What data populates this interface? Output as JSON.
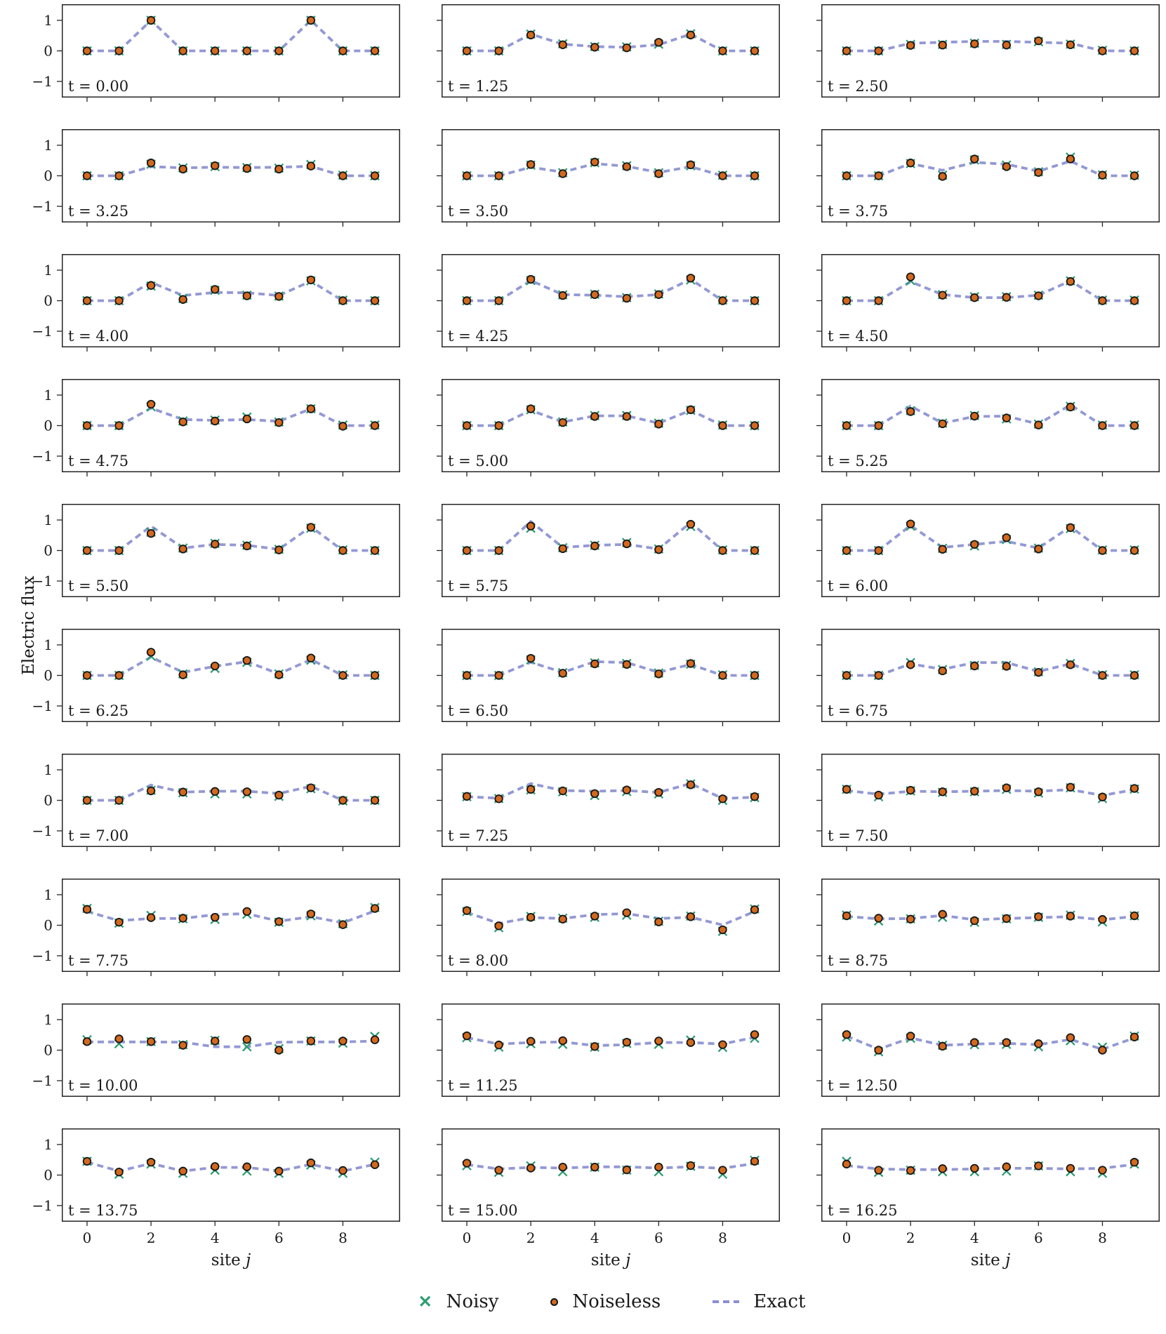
{
  "figure": {
    "ylabel": "Electric flux",
    "xlabel_prefix": "site ",
    "xlabel_var": "j",
    "t_label_prefix": "t = "
  },
  "legend": {
    "noisy": "Noisy",
    "noiseless": "Noiseless",
    "exact": "Exact"
  },
  "colors": {
    "noisy": "#2e9d72",
    "noiseless_fill": "#d2691e",
    "noiseless_edge": "#151515",
    "exact": "#8a8fd0",
    "frame": "#262626",
    "text": "#1a1a1a"
  },
  "chart_data": {
    "type": "line",
    "grid": false,
    "x": [
      0,
      1,
      2,
      3,
      4,
      5,
      6,
      7,
      8,
      9
    ],
    "xlim": [
      -0.8,
      9.8
    ],
    "ylim": [
      -1.5,
      1.5
    ],
    "x_ticks": [
      0,
      2,
      4,
      6,
      8
    ],
    "y_ticks": [
      1,
      0,
      -1
    ],
    "y_tick_labels": [
      "1",
      "0",
      "−1"
    ],
    "xlabel": "site j",
    "ylabel": "Electric flux",
    "legend": [
      "Noisy",
      "Noiseless",
      "Exact"
    ],
    "legend_position": "bottom center",
    "panels": [
      {
        "t": "0.00",
        "exact": [
          0,
          0,
          1,
          0,
          0,
          0,
          0,
          1,
          0,
          0
        ],
        "noiseless": [
          0,
          0,
          1,
          0,
          0,
          0,
          0,
          1,
          0,
          0
        ],
        "noisy": [
          0,
          0,
          1,
          0,
          0,
          0,
          0,
          1,
          0,
          0
        ]
      },
      {
        "t": "1.25",
        "exact": [
          0,
          0,
          0.55,
          0.22,
          0.14,
          0.12,
          0.2,
          0.55,
          0,
          0
        ],
        "noiseless": [
          0,
          0,
          0.52,
          0.2,
          0.12,
          0.1,
          0.28,
          0.52,
          0,
          0
        ],
        "noisy": [
          0,
          0,
          0.55,
          0.23,
          0.14,
          0.13,
          0.22,
          0.56,
          0,
          0
        ]
      },
      {
        "t": "2.50",
        "exact": [
          0,
          0,
          0.25,
          0.28,
          0.31,
          0.31,
          0.28,
          0.25,
          0,
          0
        ],
        "noiseless": [
          0,
          0,
          0.18,
          0.19,
          0.23,
          0.19,
          0.33,
          0.2,
          0,
          0
        ],
        "noisy": [
          0,
          0,
          0.21,
          0.21,
          0.25,
          0.21,
          0.3,
          0.22,
          0.02,
          0
        ]
      },
      {
        "t": "3.25",
        "exact": [
          0,
          0,
          0.3,
          0.26,
          0.28,
          0.27,
          0.28,
          0.31,
          0,
          0
        ],
        "noiseless": [
          0,
          0,
          0.42,
          0.22,
          0.33,
          0.24,
          0.22,
          0.32,
          0,
          0
        ],
        "noisy": [
          0,
          0,
          0.38,
          0.26,
          0.3,
          0.27,
          0.25,
          0.37,
          0.02,
          0
        ]
      },
      {
        "t": "3.50",
        "exact": [
          0,
          0,
          0.28,
          0.12,
          0.4,
          0.31,
          0.11,
          0.3,
          0,
          0
        ],
        "noiseless": [
          0,
          0,
          0.37,
          0.07,
          0.45,
          0.3,
          0.07,
          0.36,
          0,
          0
        ],
        "noisy": [
          0,
          0,
          0.35,
          0.1,
          0.43,
          0.33,
          0.1,
          0.33,
          0.02,
          0
        ]
      },
      {
        "t": "3.75",
        "exact": [
          0,
          0,
          0.4,
          0.18,
          0.44,
          0.38,
          0.15,
          0.48,
          0,
          0
        ],
        "noiseless": [
          0,
          0,
          0.42,
          -0.02,
          0.55,
          0.3,
          0.11,
          0.55,
          0.02,
          0
        ],
        "noisy": [
          0,
          0,
          0.4,
          0.02,
          0.52,
          0.35,
          0.13,
          0.61,
          0.03,
          0.02
        ]
      },
      {
        "t": "4.00",
        "exact": [
          0,
          0,
          0.6,
          0.17,
          0.27,
          0.26,
          0.17,
          0.64,
          0,
          0
        ],
        "noiseless": [
          0,
          0,
          0.5,
          0.04,
          0.37,
          0.16,
          0.14,
          0.68,
          0,
          0
        ],
        "noisy": [
          0,
          0,
          0.48,
          0.07,
          0.34,
          0.18,
          0.15,
          0.65,
          0.02,
          0
        ]
      },
      {
        "t": "4.25",
        "exact": [
          0,
          0,
          0.66,
          0.2,
          0.18,
          0.13,
          0.2,
          0.7,
          0,
          0
        ],
        "noiseless": [
          0,
          0,
          0.7,
          0.17,
          0.2,
          0.08,
          0.2,
          0.74,
          0,
          0
        ],
        "noisy": [
          0,
          0,
          0.66,
          0.19,
          0.21,
          0.1,
          0.22,
          0.68,
          0.02,
          0
        ]
      },
      {
        "t": "4.50",
        "exact": [
          0,
          0,
          0.62,
          0.2,
          0.1,
          0.1,
          0.18,
          0.65,
          0,
          0
        ],
        "noiseless": [
          0,
          0,
          0.78,
          0.18,
          0.1,
          0.11,
          0.16,
          0.63,
          0,
          0
        ],
        "noisy": [
          0,
          0,
          0.66,
          0.2,
          0.13,
          0.13,
          0.18,
          0.65,
          0.02,
          0.02
        ]
      },
      {
        "t": "4.75",
        "exact": [
          0,
          0,
          0.57,
          0.2,
          0.17,
          0.2,
          0.14,
          0.55,
          0,
          0
        ],
        "noiseless": [
          0,
          0,
          0.7,
          0.12,
          0.15,
          0.22,
          0.1,
          0.55,
          -0.02,
          0
        ],
        "noisy": [
          0,
          0,
          0.62,
          0.15,
          0.18,
          0.28,
          0.12,
          0.55,
          0.02,
          0.02
        ]
      },
      {
        "t": "5.00",
        "exact": [
          0,
          0,
          0.5,
          0.12,
          0.32,
          0.32,
          0.08,
          0.5,
          0,
          0
        ],
        "noiseless": [
          0,
          0,
          0.55,
          0.1,
          0.3,
          0.3,
          0.05,
          0.52,
          0,
          0
        ],
        "noisy": [
          0,
          0,
          0.52,
          0.12,
          0.33,
          0.33,
          0.08,
          0.5,
          0.02,
          0
        ]
      },
      {
        "t": "5.25",
        "exact": [
          0,
          0,
          0.64,
          0.08,
          0.3,
          0.31,
          0.05,
          0.68,
          0,
          0
        ],
        "noiseless": [
          0,
          0,
          0.46,
          0.06,
          0.31,
          0.25,
          0.02,
          0.61,
          0,
          0
        ],
        "noisy": [
          0,
          0,
          0.49,
          0.08,
          0.33,
          0.22,
          0.05,
          0.63,
          0.02,
          0.02
        ]
      },
      {
        "t": "5.50",
        "exact": [
          0,
          0,
          0.8,
          0.08,
          0.2,
          0.17,
          0.04,
          0.78,
          0,
          0
        ],
        "noiseless": [
          0,
          0,
          0.56,
          0.05,
          0.21,
          0.15,
          0.02,
          0.76,
          0,
          0
        ],
        "noisy": [
          0,
          0,
          0.6,
          0.08,
          0.23,
          0.17,
          0.04,
          0.73,
          0.02,
          0
        ]
      },
      {
        "t": "5.75",
        "exact": [
          0,
          0,
          0.95,
          0.1,
          0.17,
          0.2,
          0.05,
          0.92,
          0,
          0
        ],
        "noiseless": [
          0,
          0,
          0.8,
          0.06,
          0.15,
          0.22,
          0.03,
          0.86,
          0,
          0
        ],
        "noisy": [
          0,
          0,
          0.73,
          0.09,
          0.17,
          0.26,
          0.05,
          0.79,
          0.02,
          0
        ]
      },
      {
        "t": "6.00",
        "exact": [
          0,
          0,
          0.82,
          0.1,
          0.2,
          0.3,
          0.08,
          0.78,
          0,
          0
        ],
        "noiseless": [
          0,
          0,
          0.87,
          0.04,
          0.2,
          0.42,
          0.05,
          0.75,
          0,
          0
        ],
        "noisy": [
          0,
          0,
          0.8,
          0.07,
          0.15,
          0.36,
          0.08,
          0.72,
          0.02,
          0.02
        ]
      },
      {
        "t": "6.25",
        "exact": [
          0,
          0,
          0.6,
          0.1,
          0.3,
          0.45,
          0.05,
          0.52,
          0,
          0
        ],
        "noiseless": [
          0,
          0,
          0.76,
          0.02,
          0.31,
          0.49,
          0.02,
          0.57,
          0,
          0
        ],
        "noisy": [
          0,
          0,
          0.63,
          0.05,
          0.23,
          0.43,
          0.05,
          0.5,
          0.02,
          0
        ]
      },
      {
        "t": "6.50",
        "exact": [
          0,
          0,
          0.43,
          0.1,
          0.45,
          0.42,
          0.1,
          0.36,
          0,
          0
        ],
        "noiseless": [
          0,
          0,
          0.56,
          0.07,
          0.38,
          0.36,
          0.05,
          0.39,
          0,
          0
        ],
        "noisy": [
          0,
          0,
          0.51,
          0.09,
          0.41,
          0.39,
          0.08,
          0.37,
          0.02,
          0
        ]
      },
      {
        "t": "6.75",
        "exact": [
          0,
          0,
          0.38,
          0.2,
          0.42,
          0.42,
          0.13,
          0.38,
          0,
          0
        ],
        "noiseless": [
          0,
          0,
          0.35,
          0.15,
          0.31,
          0.3,
          0.1,
          0.35,
          0,
          0
        ],
        "noisy": [
          0,
          0,
          0.42,
          0.19,
          0.33,
          0.33,
          0.12,
          0.39,
          0.02,
          0.02
        ]
      },
      {
        "t": "7.00",
        "exact": [
          0,
          0,
          0.5,
          0.27,
          0.3,
          0.3,
          0.22,
          0.46,
          0,
          0
        ],
        "noiseless": [
          0,
          0,
          0.31,
          0.27,
          0.29,
          0.28,
          0.17,
          0.41,
          0,
          0
        ],
        "noisy": [
          0,
          0,
          0.33,
          0.25,
          0.21,
          0.21,
          0.13,
          0.38,
          -0.02,
          0
        ]
      },
      {
        "t": "7.25",
        "exact": [
          0.12,
          0.07,
          0.55,
          0.32,
          0.3,
          0.32,
          0.26,
          0.55,
          0.06,
          0.1
        ],
        "noiseless": [
          0.13,
          0.05,
          0.36,
          0.31,
          0.22,
          0.34,
          0.26,
          0.51,
          0.05,
          0.12
        ],
        "noisy": [
          0.12,
          0.06,
          0.34,
          0.28,
          0.16,
          0.29,
          0.21,
          0.54,
          0,
          0.09
        ]
      },
      {
        "t": "7.50",
        "exact": [
          0.32,
          0.2,
          0.3,
          0.28,
          0.3,
          0.32,
          0.3,
          0.35,
          0.16,
          0.35
        ],
        "noiseless": [
          0.36,
          0.17,
          0.33,
          0.28,
          0.3,
          0.41,
          0.28,
          0.43,
          0.11,
          0.39
        ],
        "noisy": [
          0.36,
          0.12,
          0.31,
          0.26,
          0.28,
          0.36,
          0.24,
          0.41,
          0.06,
          0.37
        ]
      },
      {
        "t": "7.75",
        "exact": [
          0.45,
          0.15,
          0.22,
          0.22,
          0.35,
          0.38,
          0.13,
          0.28,
          0.08,
          0.47
        ],
        "noiseless": [
          0.52,
          0.1,
          0.25,
          0.23,
          0.26,
          0.45,
          0.12,
          0.37,
          0.02,
          0.55
        ],
        "noisy": [
          0.55,
          0.07,
          0.32,
          0.21,
          0.19,
          0.36,
          0.1,
          0.31,
          0.05,
          0.58
        ]
      },
      {
        "t": "8.00",
        "exact": [
          0.42,
          0.06,
          0.25,
          0.22,
          0.35,
          0.38,
          0.22,
          0.26,
          0.01,
          0.45
        ],
        "noiseless": [
          0.48,
          -0.02,
          0.26,
          0.2,
          0.3,
          0.41,
          0.11,
          0.28,
          -0.15,
          0.51
        ],
        "noisy": [
          0.45,
          -0.08,
          0.29,
          0.23,
          0.26,
          0.33,
          0.13,
          0.3,
          -0.2,
          0.53
        ]
      },
      {
        "t": "8.75",
        "exact": [
          0.29,
          0.21,
          0.22,
          0.32,
          0.18,
          0.22,
          0.25,
          0.28,
          0.18,
          0.29
        ],
        "noiseless": [
          0.31,
          0.23,
          0.2,
          0.36,
          0.15,
          0.22,
          0.28,
          0.3,
          0.19,
          0.31
        ],
        "noisy": [
          0.33,
          0.14,
          0.21,
          0.26,
          0.1,
          0.21,
          0.26,
          0.33,
          0.11,
          0.31
        ]
      },
      {
        "t": "10.00",
        "exact": [
          0.27,
          0.27,
          0.27,
          0.26,
          0.11,
          0.11,
          0.26,
          0.27,
          0.27,
          0.3
        ],
        "noiseless": [
          0.28,
          0.37,
          0.28,
          0.16,
          0.3,
          0.35,
          0,
          0.3,
          0.3,
          0.34
        ],
        "noisy": [
          0.34,
          0.21,
          0.28,
          0.18,
          0.32,
          0.11,
          0.05,
          0.3,
          0.23,
          0.45
        ]
      },
      {
        "t": "11.25",
        "exact": [
          0.41,
          0.2,
          0.25,
          0.27,
          0.15,
          0.18,
          0.25,
          0.25,
          0.2,
          0.42
        ],
        "noiseless": [
          0.47,
          0.17,
          0.29,
          0.31,
          0.12,
          0.26,
          0.3,
          0.25,
          0.18,
          0.51
        ],
        "noisy": [
          0.41,
          0.1,
          0.21,
          0.19,
          0.1,
          0.22,
          0.19,
          0.33,
          0.09,
          0.39
        ]
      },
      {
        "t": "12.50",
        "exact": [
          0.46,
          0.03,
          0.4,
          0.16,
          0.2,
          0.22,
          0.18,
          0.35,
          0.03,
          0.4
        ],
        "noiseless": [
          0.51,
          0,
          0.46,
          0.13,
          0.25,
          0.25,
          0.21,
          0.41,
          0,
          0.43
        ],
        "noisy": [
          0.43,
          -0.05,
          0.39,
          0.16,
          0.18,
          0.19,
          0.11,
          0.31,
          0.1,
          0.46
        ]
      },
      {
        "t": "13.75",
        "exact": [
          0.42,
          0.13,
          0.38,
          0.13,
          0.25,
          0.25,
          0.13,
          0.35,
          0.13,
          0.35
        ],
        "noiseless": [
          0.45,
          0.1,
          0.42,
          0.13,
          0.28,
          0.27,
          0.13,
          0.4,
          0.15,
          0.34
        ],
        "noisy": [
          0.45,
          0.03,
          0.36,
          0.06,
          0.16,
          0.13,
          0.06,
          0.33,
          0.06,
          0.42
        ]
      },
      {
        "t": "15.00",
        "exact": [
          0.34,
          0.2,
          0.25,
          0.23,
          0.27,
          0.27,
          0.23,
          0.27,
          0.22,
          0.38
        ],
        "noiseless": [
          0.39,
          0.16,
          0.23,
          0.26,
          0.26,
          0.17,
          0.26,
          0.31,
          0.16,
          0.45
        ],
        "noisy": [
          0.31,
          0.09,
          0.3,
          0.11,
          0.26,
          0.16,
          0.11,
          0.29,
          0.03,
          0.48
        ]
      },
      {
        "t": "16.25",
        "exact": [
          0.31,
          0.2,
          0.18,
          0.18,
          0.2,
          0.22,
          0.22,
          0.2,
          0.22,
          0.35
        ],
        "noiseless": [
          0.36,
          0.16,
          0.15,
          0.21,
          0.22,
          0.27,
          0.3,
          0.22,
          0.16,
          0.42
        ],
        "noisy": [
          0.45,
          0.09,
          0.16,
          0.11,
          0.11,
          0.13,
          0.3,
          0.11,
          0.06,
          0.36
        ]
      }
    ]
  }
}
